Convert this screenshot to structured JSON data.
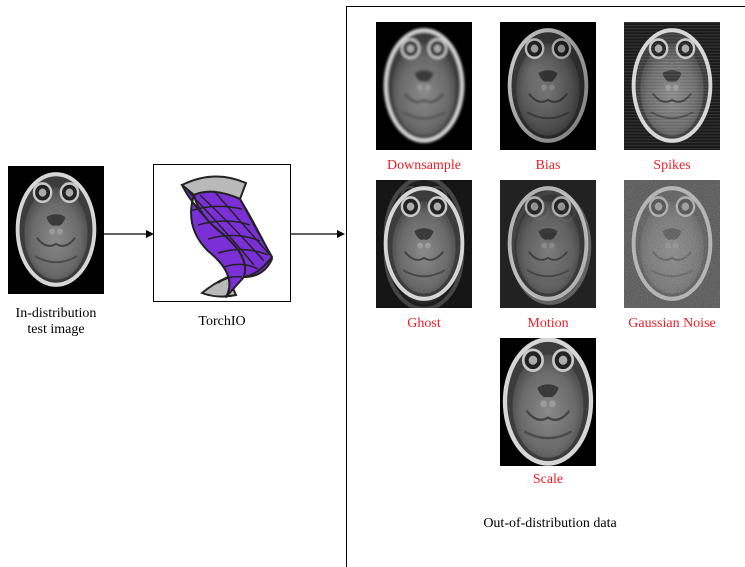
{
  "input": {
    "label_line1": "In-distribution",
    "label_line2": "test image"
  },
  "tool": {
    "label": "TorchIO"
  },
  "output": {
    "frame_label": "Out-of-distribution data",
    "transforms": [
      {
        "label": "Downsample",
        "effect": "downsample"
      },
      {
        "label": "Bias",
        "effect": "bias"
      },
      {
        "label": "Spikes",
        "effect": "spikes"
      },
      {
        "label": "Ghost",
        "effect": "ghost"
      },
      {
        "label": "Motion",
        "effect": "motion"
      },
      {
        "label": "Gaussian Noise",
        "effect": "noise"
      },
      {
        "label": "Scale",
        "effect": "scale"
      }
    ]
  },
  "colors": {
    "transform_label": "#ee1c24",
    "logo_purple": "#7b2fd6",
    "logo_gray": "#b9b9b9"
  }
}
